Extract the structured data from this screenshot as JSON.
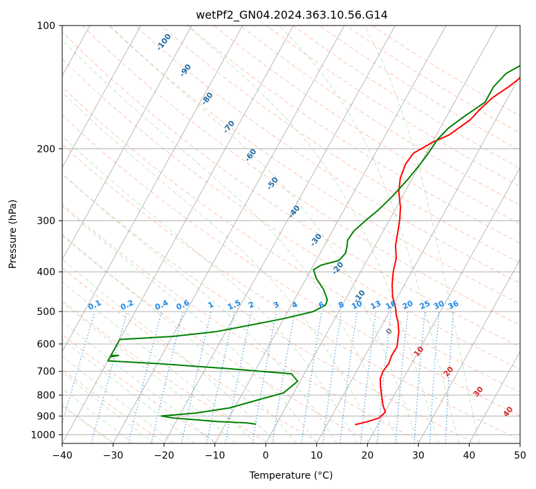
{
  "chart_data": {
    "type": "line",
    "subtype": "skew-T log-P diagram",
    "title": "wetPf2_GN04.2024.363.10.56.G14",
    "xlabel": "Temperature (°C)",
    "ylabel": "Pressure (hPa)",
    "xlim": [
      -40,
      50
    ],
    "ylim": [
      1050,
      100
    ],
    "y_scale": "log",
    "grid": true,
    "x_ticks": [
      -40,
      -30,
      -20,
      -10,
      0,
      10,
      20,
      30,
      40,
      50
    ],
    "y_ticks": [
      100,
      200,
      300,
      400,
      500,
      600,
      700,
      800,
      900,
      1000
    ],
    "x_tick_labels": [
      "−40",
      "−30",
      "−20",
      "−10",
      "0",
      "10",
      "20",
      "30",
      "40",
      "50"
    ],
    "y_tick_labels": [
      "100",
      "200",
      "300",
      "400",
      "500",
      "600",
      "700",
      "800",
      "900",
      "1000"
    ],
    "colors": {
      "temperature": "#ff0000",
      "dewpoint": "#008000",
      "isotherm": "#999999",
      "dry_adiabat": "#ff9977",
      "moist_adiabat": "#99cc99",
      "mixing_ratio": "#1e88e5",
      "theta_e": "#d2b48c",
      "dry_label": "#1f6aa5",
      "mixr_label": "#1e88e5",
      "moist_label": "#d62728",
      "zero_label": "#888888"
    },
    "series": [
      {
        "role": "temperature",
        "values": [
          [
            15.5,
            945
          ],
          [
            17.5,
            930
          ],
          [
            19.5,
            910
          ],
          [
            20.1,
            880
          ],
          [
            19.0,
            850
          ],
          [
            17.5,
            800
          ],
          [
            16.3,
            760
          ],
          [
            15.5,
            730
          ],
          [
            15.2,
            700
          ],
          [
            15.5,
            670
          ],
          [
            15.2,
            640
          ],
          [
            15.3,
            610
          ],
          [
            14.8,
            590
          ],
          [
            14.0,
            560
          ],
          [
            12.8,
            530
          ],
          [
            11.7,
            510
          ],
          [
            10.8,
            490
          ],
          [
            9.0,
            460
          ],
          [
            7.6,
            430
          ],
          [
            6.4,
            400
          ],
          [
            5.5,
            370
          ],
          [
            4.0,
            345
          ],
          [
            3.0,
            320
          ],
          [
            2.0,
            298
          ],
          [
            0.8,
            278
          ],
          [
            -1.2,
            255
          ],
          [
            -2.4,
            236
          ],
          [
            -2.9,
            218
          ],
          [
            -2.5,
            205
          ],
          [
            0.0,
            193
          ],
          [
            2.5,
            185
          ],
          [
            5.0,
            170
          ],
          [
            5.8,
            160
          ],
          [
            7.0,
            150
          ],
          [
            9.0,
            141
          ],
          [
            10.5,
            133
          ],
          [
            11.8,
            126
          ],
          [
            13.0,
            118
          ],
          [
            13.7,
            110
          ],
          [
            15.0,
            103
          ],
          [
            16.0,
            100
          ]
        ]
      },
      {
        "role": "dewpoint",
        "values": [
          [
            -4.0,
            942
          ],
          [
            -6.0,
            935
          ],
          [
            -12.0,
            928
          ],
          [
            -17.0,
            918
          ],
          [
            -21.0,
            910
          ],
          [
            -23.5,
            900
          ],
          [
            -17.0,
            885
          ],
          [
            -11.0,
            860
          ],
          [
            -6.0,
            820
          ],
          [
            -2.0,
            790
          ],
          [
            -0.5,
            740
          ],
          [
            -2.5,
            710
          ],
          [
            -15.0,
            690
          ],
          [
            -30.0,
            670
          ],
          [
            -40.0,
            660
          ],
          [
            -40.0,
            640
          ],
          [
            -38.5,
            640
          ],
          [
            -40.0,
            645
          ],
          [
            -40.0,
            585
          ],
          [
            -30.0,
            575
          ],
          [
            -22.0,
            560
          ],
          [
            -16.0,
            540
          ],
          [
            -10.0,
            520
          ],
          [
            -5.0,
            500
          ],
          [
            -3.3,
            482
          ],
          [
            -3.5,
            468
          ],
          [
            -5.5,
            440
          ],
          [
            -8.0,
            415
          ],
          [
            -9.5,
            395
          ],
          [
            -8.5,
            385
          ],
          [
            -5.5,
            375
          ],
          [
            -5.0,
            360
          ],
          [
            -5.5,
            345
          ],
          [
            -6.0,
            335
          ],
          [
            -5.8,
            318
          ],
          [
            -4.5,
            298
          ],
          [
            -3.3,
            283
          ],
          [
            -2.0,
            262
          ],
          [
            -0.8,
            238
          ],
          [
            0.0,
            218
          ],
          [
            0.4,
            205
          ],
          [
            0.7,
            190
          ],
          [
            1.6,
            178
          ],
          [
            3.6,
            166
          ],
          [
            6.0,
            154
          ],
          [
            6.0,
            141
          ],
          [
            7.0,
            131
          ],
          [
            9.0,
            125
          ],
          [
            11.0,
            118
          ],
          [
            12.5,
            111
          ],
          [
            13.5,
            104
          ],
          [
            14.0,
            100
          ]
        ]
      }
    ],
    "dry_adiabat_labels": [
      "-100",
      "-90",
      "-80",
      "-70",
      "-60",
      "-50",
      "-40",
      "-30",
      "-20",
      "-10"
    ],
    "mixing_ratio_labels": [
      "0.1",
      "0.2",
      "0.4",
      "0.6",
      "1",
      "1.5",
      "2",
      "3",
      "4",
      "6",
      "8",
      "10",
      "13",
      "16",
      "20",
      "25",
      "30",
      "36"
    ],
    "moist_adiabat_labels": [
      "0",
      "10",
      "20",
      "30",
      "40"
    ]
  }
}
